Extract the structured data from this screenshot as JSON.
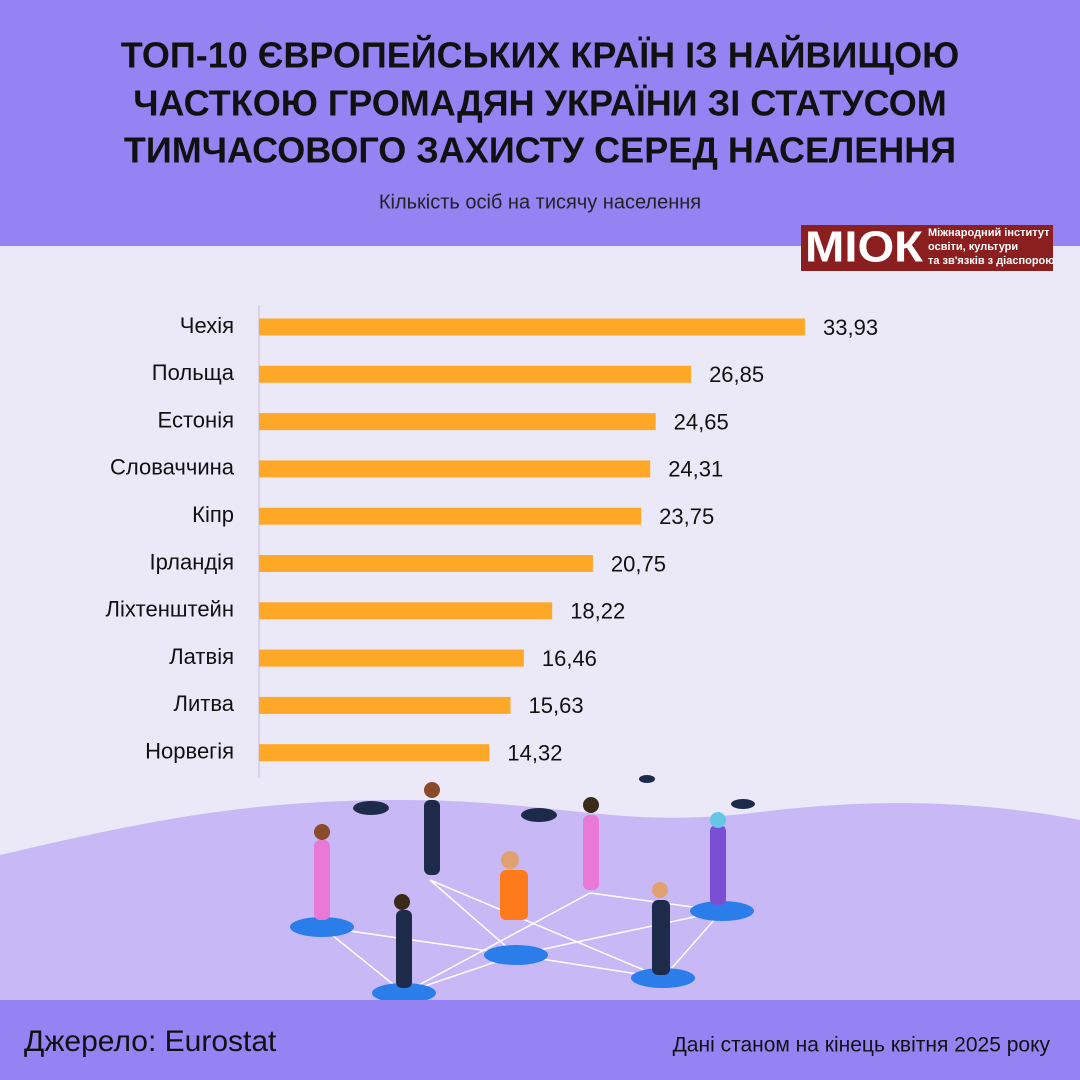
{
  "chart_data": {
    "type": "hbar",
    "title": [
      "ТОП-10 ЄВРОПЕЙСЬКИХ КРАЇН ІЗ НАЙВИЩОЮ",
      "ЧАСТКОЮ ГРОМАДЯН УКРАЇНИ ЗІ СТАТУСОМ",
      "ТИМЧАСОВОГО ЗАХИСТУ СЕРЕД НАСЕЛЕННЯ"
    ],
    "subtitle": "Кількість осіб на тисячу населення",
    "categories": [
      "Чехія",
      "Польща",
      "Естонія",
      "Словаччина",
      "Кіпр",
      "Ірландія",
      "Ліхтенштейн",
      "Латвія",
      "Литва",
      "Норвегія"
    ],
    "values": [
      33.93,
      26.85,
      24.65,
      24.31,
      23.75,
      20.75,
      18.22,
      16.46,
      15.63,
      14.32
    ],
    "value_labels": [
      "33,93",
      "26,85",
      "24,65",
      "24,31",
      "23,75",
      "20,75",
      "18,22",
      "16,46",
      "15,63",
      "14,32"
    ],
    "color": "#ffa726"
  },
  "logo": {
    "short": "МІОК",
    "text": [
      "Міжнародний інститут",
      "освіти, культури",
      "та зв'язків з діаспорою"
    ]
  },
  "footer": {
    "source": "Джерело: Eurostat",
    "note": "Дані станом на кінець квітня 2025 року"
  }
}
